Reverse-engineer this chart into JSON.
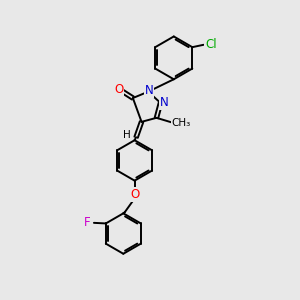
{
  "bg_color": "#e8e8e8",
  "bond_color": "#000000",
  "bond_width": 1.4,
  "atom_colors": {
    "O": "#ff0000",
    "N": "#0000cd",
    "Cl": "#00aa00",
    "F": "#cc00cc",
    "H": "#000000",
    "C": "#000000"
  },
  "font_size_atom": 8.5,
  "font_size_label": 7.5,
  "figsize": [
    3.0,
    3.0
  ],
  "dpi": 100
}
